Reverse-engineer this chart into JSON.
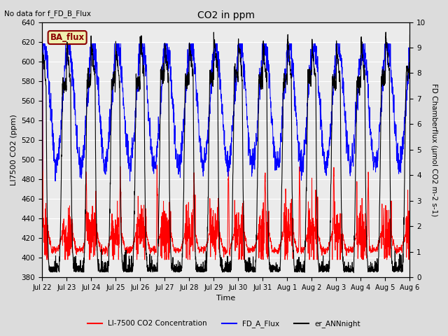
{
  "title": "CO2 in ppm",
  "top_left_text": "No data for f_FD_B_Flux",
  "ba_flux_label": "BA_flux",
  "xlabel": "Time",
  "ylabel_left": "LI7500 CO2 (ppm)",
  "ylabel_right": "FD Chamberflux (μmol CO2 m-2 s-1)",
  "ylim_left": [
    380,
    640
  ],
  "ylim_right": [
    0.0,
    10.0
  ],
  "yticks_left": [
    380,
    400,
    420,
    440,
    460,
    480,
    500,
    520,
    540,
    560,
    580,
    600,
    620,
    640
  ],
  "yticks_right": [
    0.0,
    1.0,
    2.0,
    3.0,
    4.0,
    5.0,
    6.0,
    7.0,
    8.0,
    9.0,
    10.0
  ],
  "xtick_labels": [
    "Jul 22",
    "Jul 23",
    "Jul 24",
    "Jul 25",
    "Jul 26",
    "Jul 27",
    "Jul 28",
    "Jul 29",
    "Jul 30",
    "Jul 31",
    "Aug 1",
    "Aug 2",
    "Aug 3",
    "Aug 4",
    "Aug 5",
    "Aug 6"
  ],
  "legend_entries": [
    "LI-7500 CO2 Concentration",
    "FD_A_Flux",
    "er_ANNnight"
  ],
  "legend_colors": [
    "#ff0000",
    "#0000ff",
    "#000000"
  ],
  "bg_color": "#dcdcdc",
  "plot_bg_color": "#ebebeb",
  "grid_color": "#ffffff",
  "n_days": 15,
  "pts_per_day": 144,
  "figsize": [
    6.4,
    4.8
  ],
  "dpi": 100
}
